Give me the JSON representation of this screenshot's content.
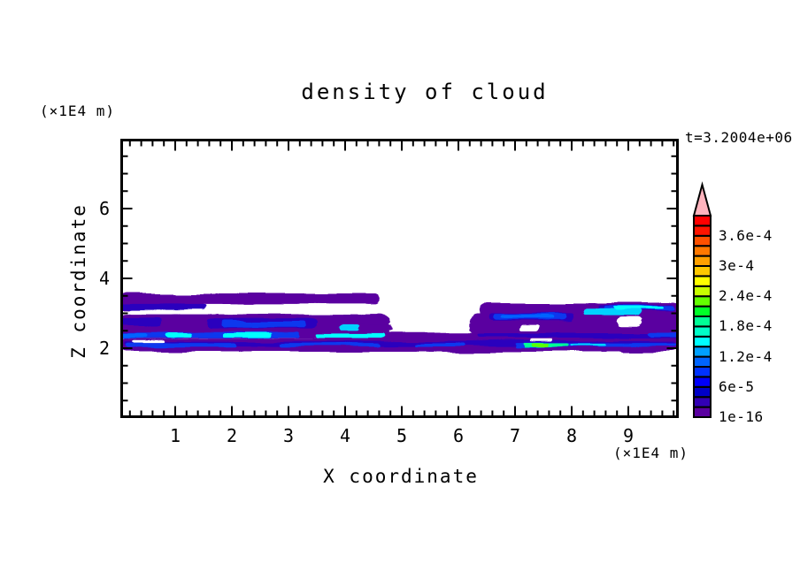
{
  "title": "density of cloud",
  "time_annotation": "t=3.2004e+06",
  "axes": {
    "x_label": "X coordinate",
    "x_unit_label": "(×1E4 m)",
    "z_label": "Z coordinate",
    "z_unit_label": "(×1E4 m)",
    "x_ticks": [
      1,
      2,
      3,
      4,
      5,
      6,
      7,
      8,
      9
    ],
    "z_ticks": [
      2,
      4,
      6
    ],
    "x_minor_step": 0.2,
    "z_minor_step": 0.5,
    "xlim": [
      0,
      9.9
    ],
    "zlim": [
      0,
      8
    ]
  },
  "colorbar": {
    "labels": [
      "1e-16",
      "6e-5",
      "1.2e-4",
      "1.8e-4",
      "2.4e-4",
      "3e-4",
      "3.6e-4"
    ],
    "label_every_n_segments": 3,
    "segment_colors_bottom_to_top": [
      "#5A00A0",
      "#3200B4",
      "#0000C8",
      "#0000FA",
      "#0032FF",
      "#0064FF",
      "#00A0FF",
      "#00FFFF",
      "#00FFC8",
      "#00FF96",
      "#00FF28",
      "#64FF00",
      "#C8FF00",
      "#FFFF00",
      "#FFC800",
      "#FFA000",
      "#FF7800",
      "#FF5000",
      "#FF1400",
      "#FF0000"
    ],
    "overflow_arrow_color": "#FFB4BE",
    "outline_color": "#000000"
  },
  "chart_data": {
    "type": "filled_contour",
    "title": "density of cloud",
    "xlabel": "X coordinate",
    "ylabel": "Z coordinate",
    "x_units": "×1E4 m",
    "z_units": "×1E4 m",
    "time": "t=3.2004e+06",
    "xlim": [
      0,
      9.9
    ],
    "zlim": [
      0,
      8
    ],
    "level_min": 1e-16,
    "level_step": 2e-05,
    "level_max": 0.0004,
    "labeled_levels": [
      "1e-16",
      "6e-5",
      "1.2e-4",
      "1.8e-4",
      "2.4e-4",
      "3e-4",
      "3.6e-4"
    ],
    "description": "Thin stratified cloud layer between z≈1.9 and z≈3.6 (×1E4 m); dense low band at z≈2 across full x range, thicker lobes at x<4.7 and x>6.2, mostly lowest-density purple with embedded blue/cyan streaks and a small green maximum near x≈7.4, z≈2.1",
    "palette": {
      "P": "#5A00A0",
      "I": "#2A00BE",
      "B": "#0838EE",
      "S": "#0064FF",
      "C": "#00FFFF",
      "C2": "#00D2FF",
      "G": "#00FF96",
      "GB": "#5AFF00",
      "W": "#FFFFFF"
    },
    "regions": [
      [
        "P",
        0.0,
        9.92,
        1.9,
        2.3
      ],
      [
        "P",
        0.06,
        4.62,
        3.27,
        3.57
      ],
      [
        "P",
        0.0,
        1.5,
        3.08,
        3.5
      ],
      [
        "P",
        0.0,
        4.78,
        2.3,
        2.97
      ],
      [
        "P",
        3.95,
        7.15,
        2.25,
        2.45
      ],
      [
        "P",
        4.1,
        4.85,
        2.52,
        2.68
      ],
      [
        "P",
        6.38,
        9.92,
        2.93,
        3.29
      ],
      [
        "P",
        6.2,
        9.92,
        2.3,
        3.0
      ],
      [
        "I",
        0.1,
        9.85,
        2.06,
        2.2
      ],
      [
        "I",
        0.05,
        1.55,
        3.1,
        3.27
      ],
      [
        "I",
        0.05,
        0.75,
        2.62,
        2.85
      ],
      [
        "I",
        1.55,
        3.5,
        2.58,
        2.82
      ],
      [
        "I",
        6.55,
        8.05,
        2.78,
        2.99
      ],
      [
        "I",
        6.3,
        9.9,
        2.29,
        2.43
      ],
      [
        "I",
        8.45,
        9.8,
        3.04,
        3.23
      ],
      [
        "B",
        0.12,
        2.1,
        2.02,
        2.15
      ],
      [
        "B",
        2.85,
        4.6,
        2.04,
        2.15
      ],
      [
        "B",
        5.25,
        6.1,
        2.05,
        2.14
      ],
      [
        "B",
        7.0,
        9.88,
        2.03,
        2.15
      ],
      [
        "B",
        1.82,
        3.3,
        2.6,
        2.76
      ],
      [
        "B",
        0.0,
        3.2,
        2.31,
        2.45
      ],
      [
        "B",
        6.62,
        7.92,
        2.8,
        2.97
      ],
      [
        "B",
        8.55,
        9.8,
        3.06,
        3.21
      ],
      [
        "B",
        9.35,
        9.88,
        2.33,
        2.45
      ],
      [
        "S",
        6.75,
        7.7,
        2.84,
        2.94
      ],
      [
        "S",
        0.03,
        0.5,
        2.33,
        2.43
      ],
      [
        "C",
        0.82,
        1.3,
        2.32,
        2.43
      ],
      [
        "C",
        1.85,
        2.7,
        2.33,
        2.43
      ],
      [
        "C",
        3.5,
        4.7,
        2.29,
        2.42
      ],
      [
        "C2",
        3.92,
        4.27,
        2.51,
        2.66
      ],
      [
        "C2",
        8.2,
        9.2,
        2.96,
        3.12
      ],
      [
        "C",
        8.72,
        9.6,
        3.09,
        3.18
      ],
      [
        "C2",
        8.0,
        8.6,
        2.05,
        2.13
      ],
      [
        "G",
        7.15,
        7.97,
        2.04,
        2.14
      ],
      [
        "GB",
        7.3,
        7.62,
        2.05,
        2.13
      ],
      [
        "W",
        0.2,
        1.75,
        2.96,
        3.11
      ],
      [
        "W",
        0.25,
        0.8,
        2.15,
        2.26
      ],
      [
        "W",
        7.1,
        7.45,
        2.52,
        2.68
      ],
      [
        "W",
        8.8,
        9.25,
        2.64,
        2.92
      ],
      [
        "W",
        7.28,
        7.68,
        2.17,
        2.26
      ]
    ]
  }
}
